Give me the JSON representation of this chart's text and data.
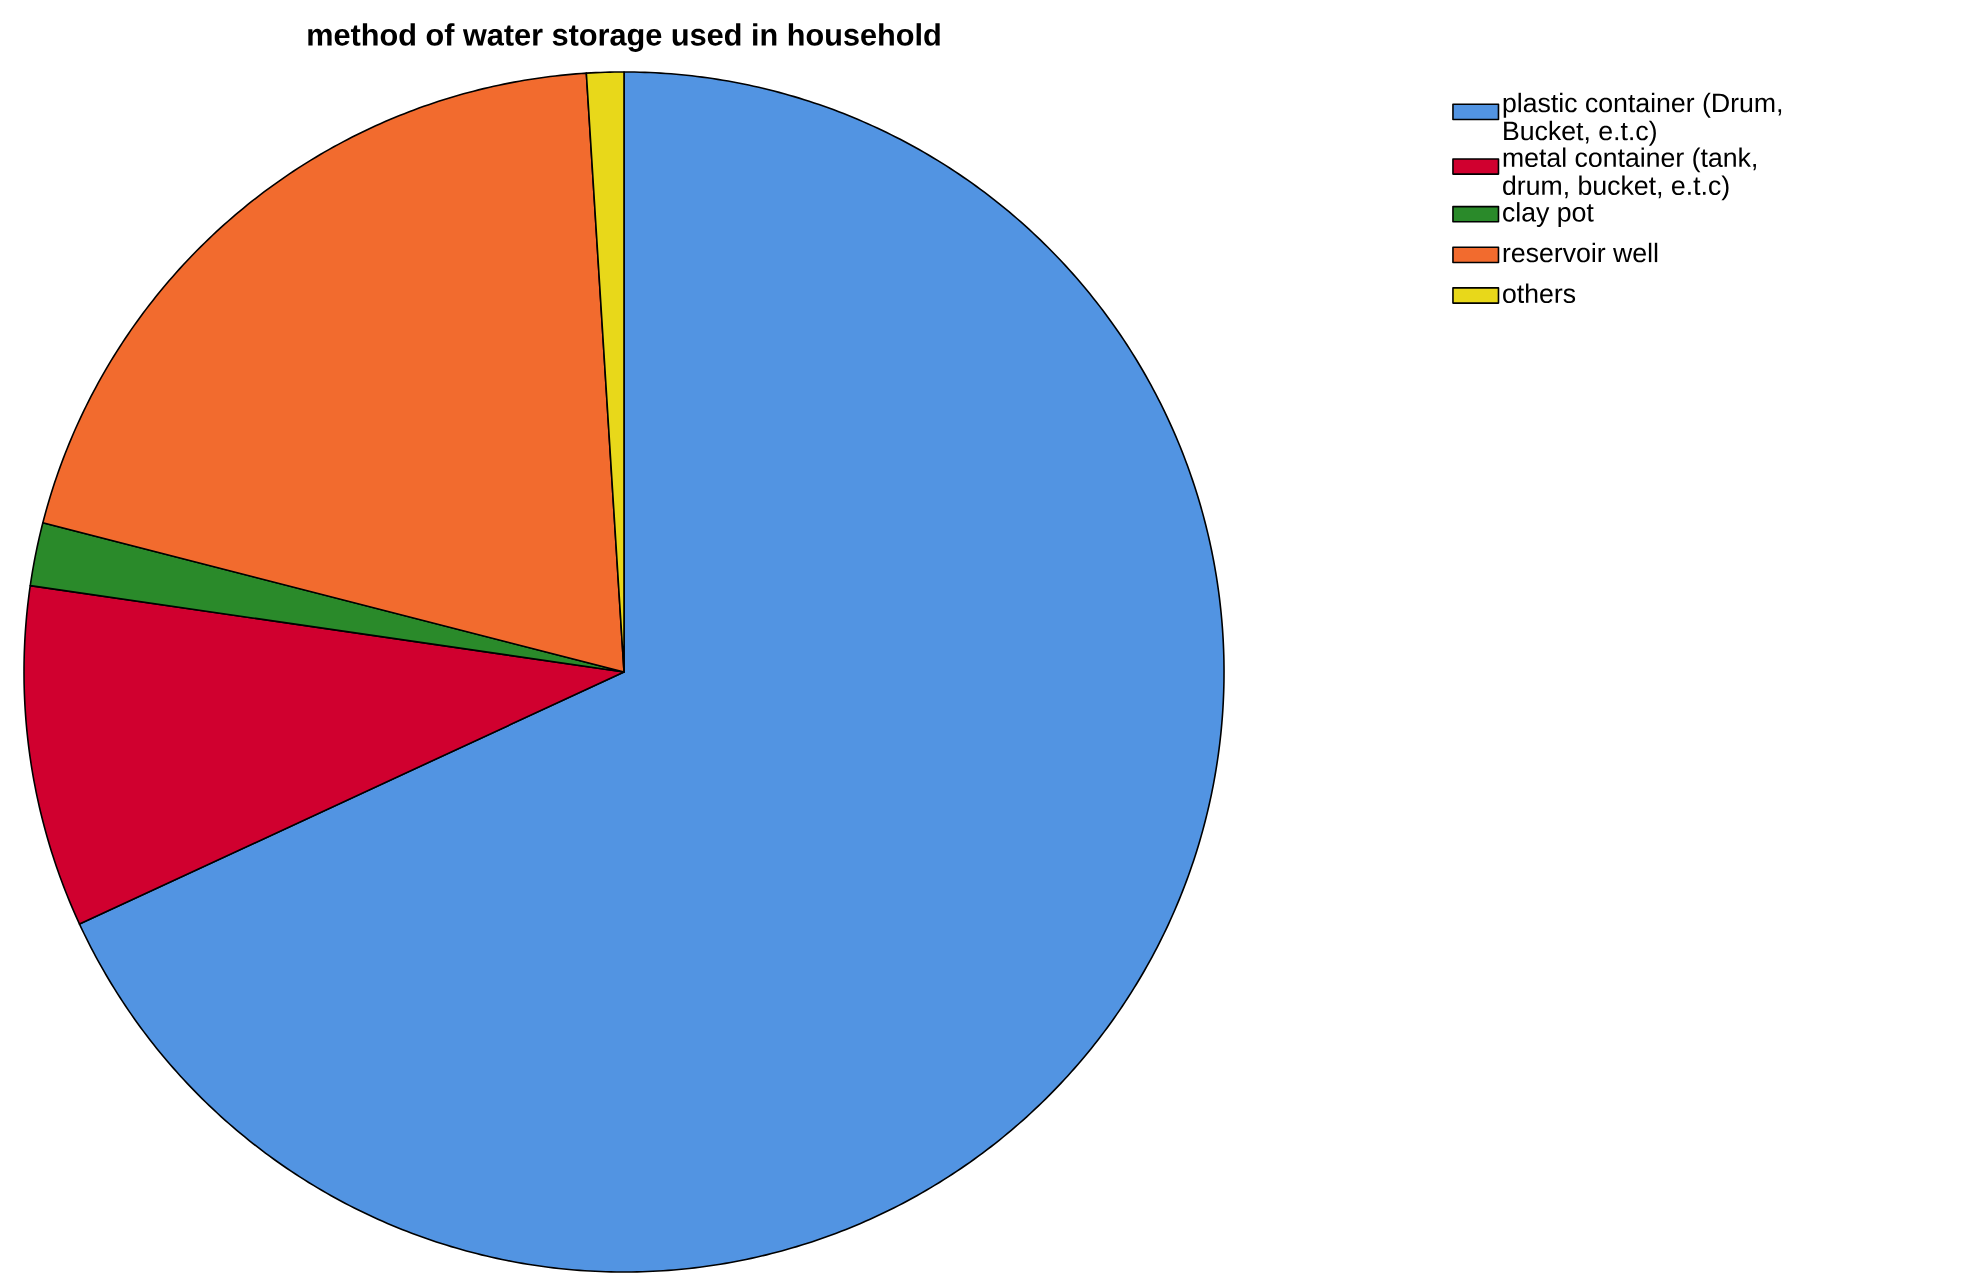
{
  "chart_data": {
    "type": "pie",
    "title": "method of water storage used in household",
    "categories": [
      "plastic container (Drum, Bucket, e.t.c)",
      "metal container (tank, drum, bucket, e.t.c)",
      "clay pot",
      "reservoir well",
      "others"
    ],
    "values": [
      68.1,
      9.2,
      1.7,
      20.0,
      1.0
    ],
    "colors": [
      "#5294e2",
      "#d0002f",
      "#2a8a2a",
      "#f26b2e",
      "#e8d81a"
    ],
    "legend": "top right"
  }
}
